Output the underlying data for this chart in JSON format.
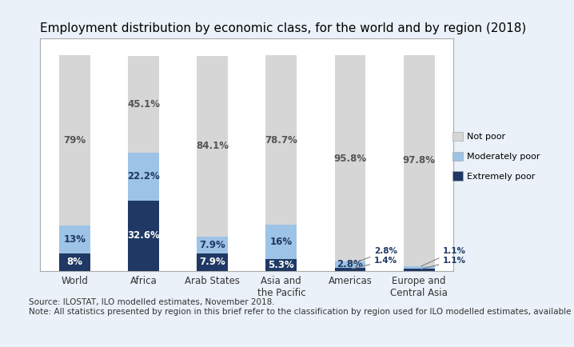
{
  "title": "Employment distribution by economic class, for the world and by region (2018)",
  "categories": [
    "World",
    "Africa",
    "Arab States",
    "Asia and\nthe Pacific",
    "Americas",
    "Europe and\nCentral Asia"
  ],
  "extremely_poor": [
    8,
    32.6,
    7.9,
    5.3,
    1.4,
    1.1
  ],
  "moderately_poor": [
    13,
    22.2,
    7.9,
    16,
    2.8,
    1.1
  ],
  "not_poor": [
    79,
    45.1,
    84.1,
    78.7,
    95.8,
    97.8
  ],
  "color_extremely_poor": "#1f3864",
  "color_moderately_poor": "#9dc3e6",
  "color_not_poor": "#d6d6d6",
  "bar_width": 0.45,
  "source_text": "Source: ILOSTAT, ILO modelled estimates, November 2018.\nNote: All statistics presented by region in this brief refer to the classification by region used for ILO modelled estimates, available in ILOSTAT.",
  "legend_labels": [
    "Not poor",
    "Moderately poor",
    "Extremely poor"
  ],
  "background_color": "#eaf1f8",
  "chart_bg_color": "#ffffff",
  "title_fontsize": 11,
  "label_fontsize": 8.5,
  "source_fontsize": 7.5,
  "ylim": [
    0,
    108
  ]
}
